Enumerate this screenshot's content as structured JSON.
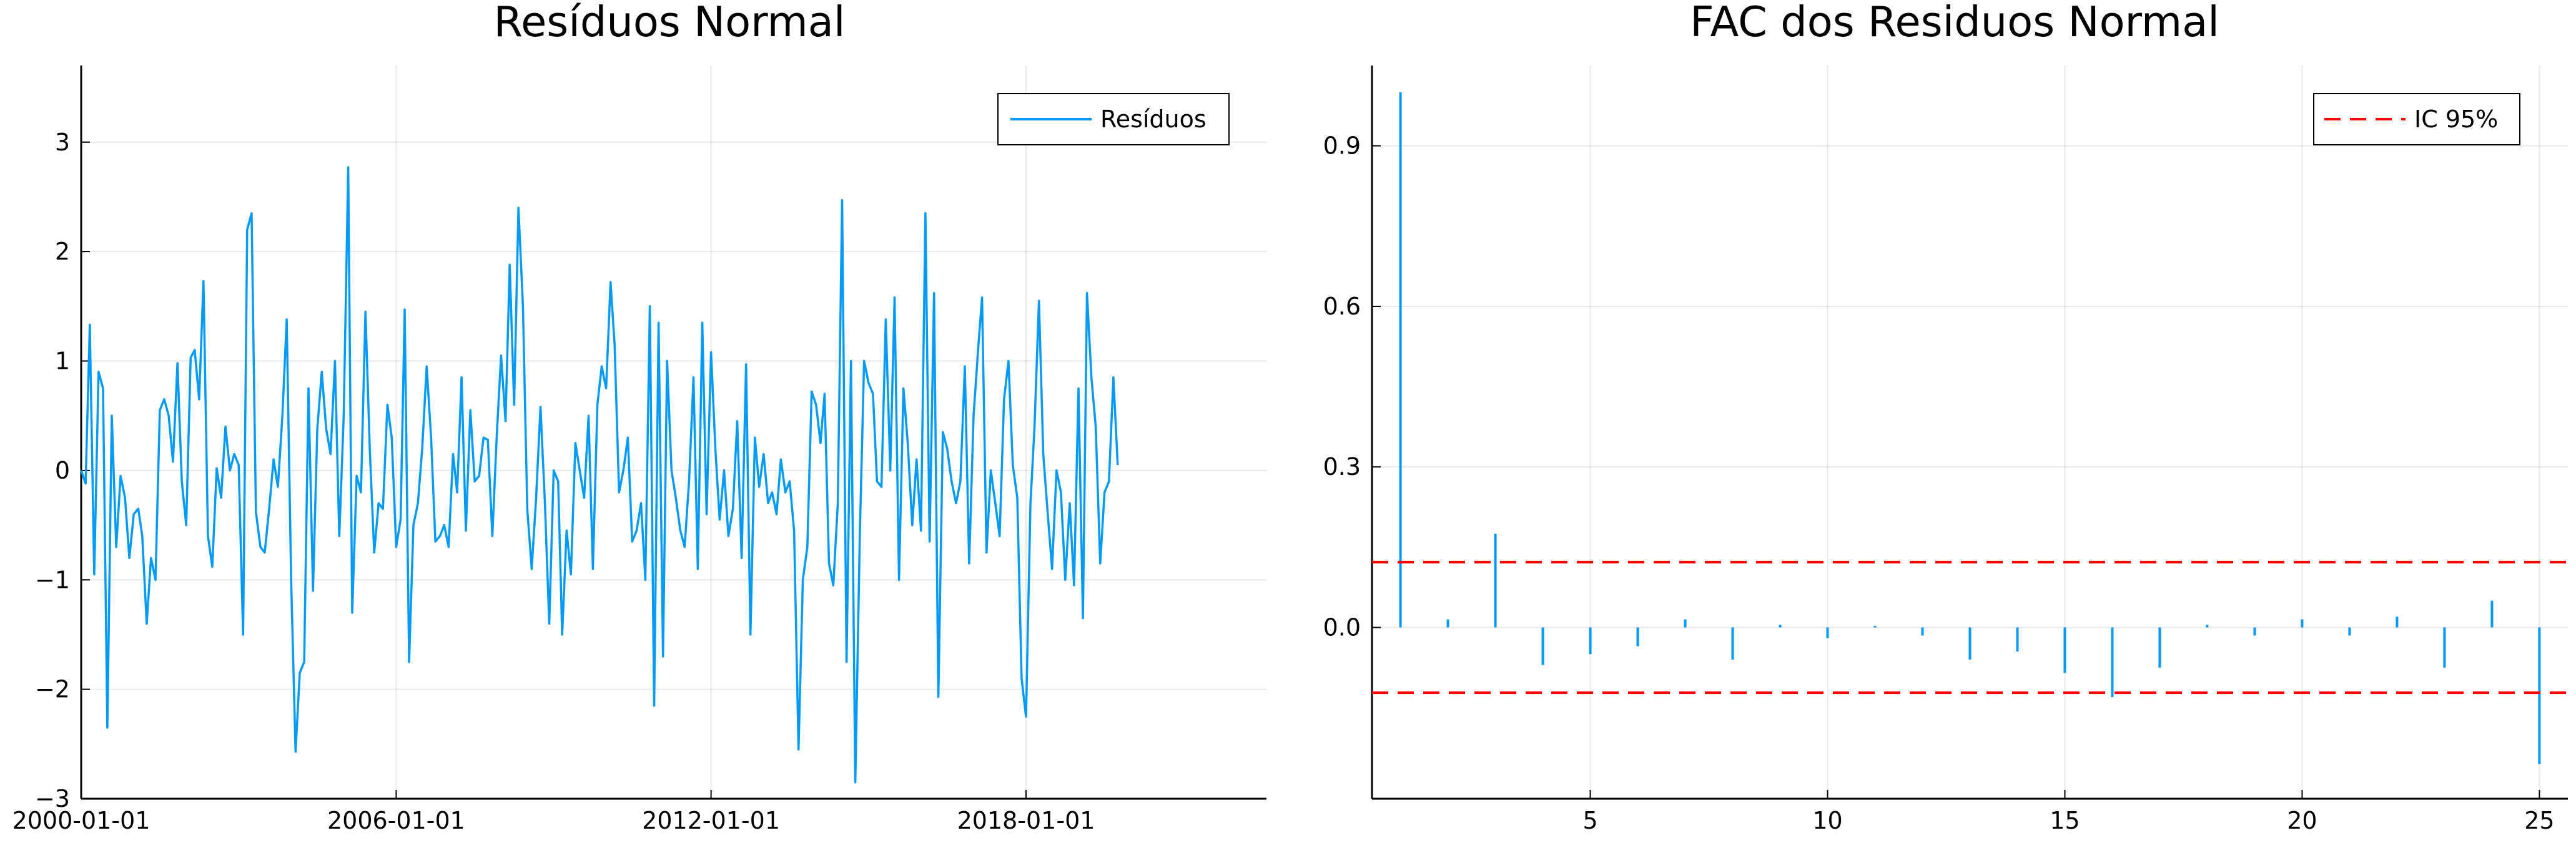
{
  "chart_data": [
    {
      "type": "line",
      "title": "Resíduos Normal",
      "xlabel": "",
      "ylabel": "",
      "x_start": "2000-01-01",
      "x_end": "2022-03-01",
      "x_frequency": "monthly",
      "xlim": [
        "2000-01-01",
        "2022-08-01"
      ],
      "ylim": [
        -3,
        3.7
      ],
      "xticks": [
        "2000-01-01",
        "2006-01-01",
        "2012-01-01",
        "2018-01-01"
      ],
      "yticks": [
        -3,
        -2,
        -1,
        0,
        1,
        2,
        3
      ],
      "grid": true,
      "legend": "top-right",
      "series": [
        {
          "name": "Resíduos",
          "color": "#009AFA",
          "values": [
            0.0,
            -0.12,
            1.33,
            -0.95,
            0.9,
            0.75,
            -2.35,
            0.5,
            -0.7,
            -0.05,
            -0.25,
            -0.8,
            -0.4,
            -0.35,
            -0.6,
            -1.4,
            -0.8,
            -1.0,
            0.55,
            0.65,
            0.5,
            0.08,
            0.98,
            -0.1,
            -0.5,
            1.03,
            1.1,
            0.65,
            1.73,
            -0.6,
            -0.88,
            0.02,
            -0.25,
            0.4,
            0.0,
            0.15,
            0.05,
            -1.5,
            2.2,
            2.35,
            -0.38,
            -0.7,
            -0.75,
            -0.35,
            0.1,
            -0.15,
            0.5,
            1.38,
            -1.0,
            -2.57,
            -1.85,
            -1.75,
            0.75,
            -1.1,
            0.38,
            0.9,
            0.38,
            0.15,
            1.0,
            -0.6,
            0.5,
            2.77,
            -1.3,
            -0.05,
            -0.2,
            1.45,
            0.2,
            -0.75,
            -0.3,
            -0.35,
            0.6,
            0.3,
            -0.7,
            -0.45,
            1.47,
            -1.75,
            -0.5,
            -0.3,
            0.2,
            0.95,
            0.3,
            -0.65,
            -0.6,
            -0.5,
            -0.7,
            0.15,
            -0.2,
            0.85,
            -0.55,
            0.55,
            -0.1,
            -0.05,
            0.3,
            0.28,
            -0.6,
            0.3,
            1.05,
            0.45,
            1.88,
            0.6,
            2.4,
            1.5,
            -0.35,
            -0.9,
            -0.25,
            0.58,
            -0.3,
            -1.4,
            0.0,
            -0.1,
            -1.5,
            -0.55,
            -0.95,
            0.25,
            0.0,
            -0.25,
            0.5,
            -0.9,
            0.6,
            0.95,
            0.75,
            1.72,
            1.15,
            -0.2,
            0.0,
            0.3,
            -0.65,
            -0.55,
            -0.3,
            -1.0,
            1.5,
            -2.15,
            1.35,
            -1.7,
            1.0,
            0.0,
            -0.25,
            -0.55,
            -0.7,
            -0.1,
            0.85,
            -0.9,
            1.35,
            -0.4,
            1.08,
            0.18,
            -0.45,
            0.0,
            -0.6,
            -0.35,
            0.45,
            -0.8,
            0.97,
            -1.5,
            0.3,
            -0.15,
            0.15,
            -0.3,
            -0.2,
            -0.4,
            0.1,
            -0.2,
            -0.1,
            -0.55,
            -2.55,
            -1.0,
            -0.7,
            0.72,
            0.6,
            0.25,
            0.7,
            -0.85,
            -1.05,
            -0.3,
            2.47,
            -1.75,
            1.0,
            -2.85,
            -0.6,
            1.0,
            0.8,
            0.7,
            -0.1,
            -0.15,
            1.38,
            0.0,
            1.58,
            -1.0,
            0.75,
            0.25,
            -0.5,
            0.1,
            -0.55,
            2.35,
            -0.65,
            1.62,
            -2.07,
            0.35,
            0.2,
            -0.1,
            -0.3,
            -0.1,
            0.95,
            -0.85,
            0.5,
            1.1,
            1.58,
            -0.75,
            0.0,
            -0.3,
            -0.6,
            0.65,
            1.0,
            0.05,
            -0.25,
            -1.9,
            -2.25,
            -0.3,
            0.4,
            1.55,
            0.15,
            -0.4,
            -0.9,
            0.0,
            -0.2,
            -1.0,
            -0.3,
            -1.05,
            0.75,
            -1.35,
            1.62,
            0.85,
            0.4,
            -0.85,
            -0.2,
            -0.1,
            0.85,
            0.05
          ]
        }
      ]
    },
    {
      "type": "bar",
      "title": "FAC dos Residuos Normal",
      "xlabel": "",
      "ylabel": "",
      "xlim": [
        0.4,
        25.6
      ],
      "ylim": [
        -0.32,
        1.05
      ],
      "xticks": [
        5,
        10,
        15,
        20,
        25
      ],
      "yticks": [
        0.0,
        0.3,
        0.6,
        0.9
      ],
      "grid": true,
      "legend": "top-right",
      "x": [
        1,
        2,
        3,
        4,
        5,
        6,
        7,
        8,
        9,
        10,
        11,
        12,
        13,
        14,
        15,
        16,
        17,
        18,
        19,
        20,
        21,
        22,
        23,
        24,
        25
      ],
      "series": [
        {
          "name": "",
          "color": "#009AFA",
          "values": [
            1.0,
            0.015,
            0.175,
            -0.07,
            -0.05,
            -0.035,
            0.015,
            -0.06,
            0.005,
            -0.02,
            0.003,
            -0.015,
            -0.06,
            -0.045,
            -0.085,
            -0.13,
            -0.075,
            0.005,
            -0.015,
            0.015,
            -0.015,
            0.02,
            -0.075,
            0.05,
            -0.255
          ]
        }
      ],
      "confidence_interval": {
        "name": "IC 95%",
        "upper": 0.122,
        "lower": -0.122,
        "color": "#FF0000"
      }
    }
  ]
}
